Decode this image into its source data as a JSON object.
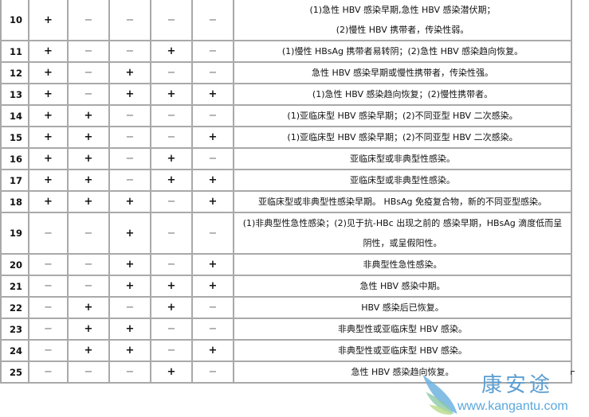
{
  "rows": [
    {
      "no": "10",
      "s": [
        "+",
        "−",
        "−",
        "−",
        "−"
      ],
      "desc": [
        "(1)急性 HBV 感染早期,急性 HBV 感染潜伏期；",
        "(2)慢性 HBV 携带者，传染性弱。"
      ]
    },
    {
      "no": "11",
      "s": [
        "+",
        "−",
        "−",
        "+",
        "−"
      ],
      "desc": [
        "(1)慢性 HBsAg 携带者易转阴；(2)急性 HBV 感染趋向恢复。"
      ]
    },
    {
      "no": "12",
      "s": [
        "+",
        "−",
        "+",
        "−",
        "−"
      ],
      "desc": [
        "急性 HBV 感染早期或慢性携带者，传染性强。"
      ]
    },
    {
      "no": "13",
      "s": [
        "+",
        "−",
        "+",
        "+",
        "+"
      ],
      "desc": [
        "(1)急性 HBV 感染趋向恢复；(2)慢性携带者。"
      ]
    },
    {
      "no": "14",
      "s": [
        "+",
        "+",
        "−",
        "−",
        "−"
      ],
      "desc": [
        "(1)亚临床型 HBV 感染早期；(2)不同亚型 HBV 二次感染。"
      ]
    },
    {
      "no": "15",
      "s": [
        "+",
        "+",
        "−",
        "−",
        "+"
      ],
      "desc": [
        "(1)亚临床型 HBV 感染早期；(2)不同亚型 HBV 二次感染。"
      ]
    },
    {
      "no": "16",
      "s": [
        "+",
        "+",
        "−",
        "+",
        "−"
      ],
      "desc": [
        "亚临床型或非典型性感染。"
      ]
    },
    {
      "no": "17",
      "s": [
        "+",
        "+",
        "−",
        "+",
        "+"
      ],
      "desc": [
        "亚临床型或非典型性感染。"
      ]
    },
    {
      "no": "18",
      "s": [
        "+",
        "+",
        "+",
        "−",
        "+"
      ],
      "desc": [
        "亚临床型或非典型性感染早期。 HBsAg 免疫复合物，新的不同亚型感染。"
      ]
    },
    {
      "no": "19",
      "s": [
        "−",
        "−",
        "+",
        "−",
        "−"
      ],
      "desc": [
        "(1)非典型性急性感染；(2)见于抗-HBc 出现之前的 感染早期，HBsAg 滴度低而呈",
        "阴性，或呈假阳性。"
      ]
    },
    {
      "no": "20",
      "s": [
        "−",
        "−",
        "+",
        "−",
        "+"
      ],
      "desc": [
        "非典型性急性感染。"
      ]
    },
    {
      "no": "21",
      "s": [
        "−",
        "−",
        "+",
        "+",
        "+"
      ],
      "desc": [
        "急性 HBV 感染中期。"
      ]
    },
    {
      "no": "22",
      "s": [
        "−",
        "+",
        "−",
        "+",
        "−"
      ],
      "desc": [
        "HBV 感染后已恢复。"
      ]
    },
    {
      "no": "23",
      "s": [
        "−",
        "+",
        "+",
        "−",
        "−"
      ],
      "desc": [
        "非典型性或亚临床型 HBV 感染。"
      ]
    },
    {
      "no": "24",
      "s": [
        "−",
        "+",
        "+",
        "−",
        "+"
      ],
      "desc": [
        "非典型性或亚临床型 HBV 感染。"
      ]
    },
    {
      "no": "25",
      "s": [
        "−",
        "−",
        "−",
        "+",
        "−"
      ],
      "desc": [
        "急性 HBV 感染趋向恢复。"
      ]
    }
  ],
  "watermark": {
    "name": "康安途",
    "url": "www.kangantu.com",
    "color": "#5b9ed2"
  }
}
